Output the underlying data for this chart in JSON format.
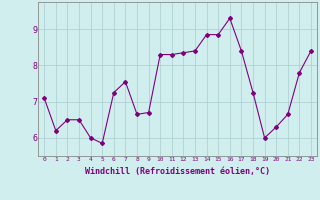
{
  "x": [
    0,
    1,
    2,
    3,
    4,
    5,
    6,
    7,
    8,
    9,
    10,
    11,
    12,
    13,
    14,
    15,
    16,
    17,
    18,
    19,
    20,
    21,
    22,
    23
  ],
  "y": [
    7.1,
    6.2,
    6.5,
    6.5,
    6.0,
    5.85,
    7.25,
    7.55,
    6.65,
    6.7,
    8.3,
    8.3,
    8.35,
    8.4,
    8.85,
    8.85,
    9.3,
    8.4,
    7.25,
    6.0,
    6.3,
    6.65,
    7.8,
    8.4
  ],
  "line_color": "#800080",
  "marker": "D",
  "markersize": 2,
  "linewidth": 0.8,
  "bg_color": "#d0eeee",
  "grid_color": "#aacccc",
  "xlabel": "Windchill (Refroidissement éolien,°C)",
  "xlabel_color": "#800080",
  "tick_color": "#800080",
  "ylim": [
    5.5,
    9.75
  ],
  "yticks": [
    6,
    7,
    8,
    9
  ],
  "xlim": [
    -0.5,
    23.5
  ],
  "spine_color": "#888888"
}
